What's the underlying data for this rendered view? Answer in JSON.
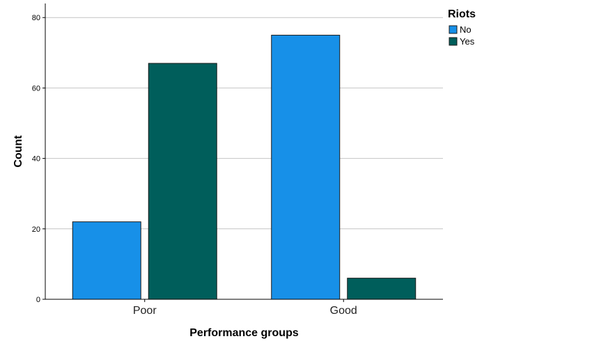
{
  "chart_data": {
    "type": "bar",
    "categories": [
      "Poor",
      "Good"
    ],
    "series": [
      {
        "name": "No",
        "values": [
          22,
          75
        ],
        "color": "#1790E8"
      },
      {
        "name": "Yes",
        "values": [
          67,
          6
        ],
        "color": "#005E5B"
      }
    ],
    "xlabel": "Performance groups",
    "ylabel": "Count",
    "legend_title": "Riots",
    "legend_position": "top-right",
    "ylim": [
      0,
      84
    ],
    "yticks": [
      0,
      20,
      40,
      60,
      80
    ],
    "grid": true
  }
}
